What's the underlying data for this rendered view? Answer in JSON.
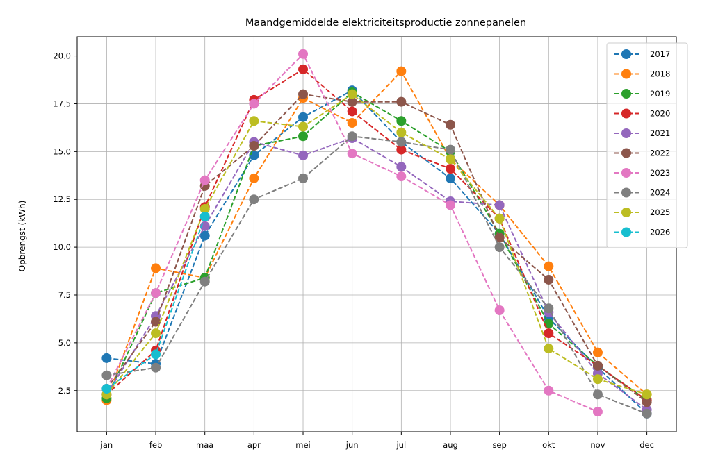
{
  "chart_data": {
    "type": "line",
    "title": "Maandgemiddelde elektriciteitsproductie zonnepanelen",
    "xlabel": "",
    "ylabel": "Opbrengst (kWh)",
    "categories": [
      "jan",
      "feb",
      "maa",
      "apr",
      "mei",
      "jun",
      "jul",
      "aug",
      "sep",
      "okt",
      "nov",
      "dec"
    ],
    "ylim": [
      0.35,
      21.0
    ],
    "yticks": [
      "2.5",
      "5.0",
      "7.5",
      "10.0",
      "12.5",
      "15.0",
      "17.5",
      "20.0"
    ],
    "grid": true,
    "legend_position": "top-right",
    "line_style": "dashed",
    "marker": "circle",
    "series": [
      {
        "name": "2017",
        "color": "#1f77b4",
        "values": [
          4.2,
          3.9,
          10.6,
          14.8,
          16.8,
          18.2,
          15.5,
          13.6,
          10.7,
          6.3,
          3.7,
          1.3
        ]
      },
      {
        "name": "2018",
        "color": "#ff7f0e",
        "values": [
          2.0,
          8.9,
          8.4,
          13.6,
          17.8,
          16.5,
          19.2,
          14.6,
          12.2,
          9.0,
          4.5,
          2.3
        ]
      },
      {
        "name": "2019",
        "color": "#2ca02c",
        "values": [
          2.1,
          7.6,
          8.4,
          15.3,
          15.8,
          18.1,
          16.6,
          15.0,
          10.7,
          6.0,
          3.8,
          2.0
        ]
      },
      {
        "name": "2020",
        "color": "#d62728",
        "values": [
          2.3,
          4.6,
          12.1,
          17.7,
          19.3,
          17.1,
          15.1,
          14.1,
          11.5,
          5.5,
          3.8,
          2.0
        ]
      },
      {
        "name": "2021",
        "color": "#9467bd",
        "values": [
          2.3,
          6.4,
          11.1,
          15.5,
          14.8,
          15.7,
          14.2,
          12.4,
          12.2,
          6.6,
          3.4,
          1.5
        ]
      },
      {
        "name": "2022",
        "color": "#8c564b",
        "values": [
          2.6,
          6.1,
          13.2,
          15.3,
          18.0,
          17.6,
          17.6,
          16.4,
          10.5,
          8.3,
          3.8,
          1.9
        ]
      },
      {
        "name": "2023",
        "color": "#e377c2",
        "values": [
          2.6,
          7.6,
          13.5,
          17.5,
          20.1,
          14.9,
          13.7,
          12.2,
          6.7,
          2.5,
          1.4,
          null
        ]
      },
      {
        "name": "2024",
        "color": "#7f7f7f",
        "values": [
          3.3,
          3.7,
          8.2,
          12.5,
          13.6,
          15.8,
          15.5,
          15.1,
          10.0,
          6.8,
          2.3,
          1.3
        ]
      },
      {
        "name": "2025",
        "color": "#bcbd22",
        "values": [
          2.3,
          5.5,
          12.0,
          16.6,
          16.3,
          18.0,
          16.0,
          14.6,
          11.5,
          4.7,
          3.1,
          2.3
        ]
      },
      {
        "name": "2026",
        "color": "#17becf",
        "values": [
          2.6,
          4.4,
          11.6,
          null,
          null,
          null,
          null,
          null,
          null,
          null,
          null,
          null
        ]
      }
    ]
  }
}
